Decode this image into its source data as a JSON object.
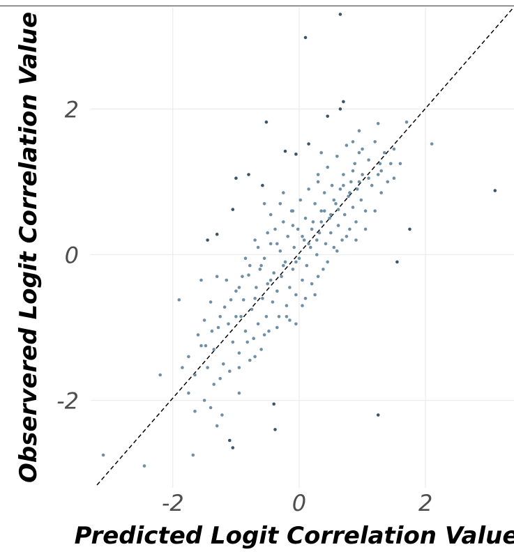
{
  "chart_data": {
    "type": "scatter",
    "title": "",
    "xlabel": "Predicted Logit Correlation Value",
    "ylabel": "Observered Logit Correlation Value",
    "xlim": [
      -3.3,
      3.4
    ],
    "ylim": [
      -3.2,
      3.4
    ],
    "x_ticks": [
      -2,
      0,
      2
    ],
    "y_ticks": [
      -2,
      0,
      2
    ],
    "x_tick_labels": [
      "-2",
      "0",
      "2"
    ],
    "y_tick_labels": [
      "-2",
      "0",
      "2"
    ],
    "grid": true,
    "reference_line": {
      "slope": 1,
      "intercept": 0,
      "style": "dashed",
      "color": "#000000"
    },
    "point_color": "#6f8fa6",
    "highlight_color": "#3b5468",
    "series": [
      {
        "points": [
          [
            -3.1,
            -2.75
          ],
          [
            -2.45,
            -2.9
          ],
          [
            -2.2,
            -1.65
          ],
          [
            -1.9,
            -0.62
          ],
          [
            -1.85,
            -1.55
          ],
          [
            -1.75,
            -1.9
          ],
          [
            -1.68,
            -2.75
          ],
          [
            -1.65,
            -2.15
          ],
          [
            -1.5,
            -2.0
          ],
          [
            -1.4,
            -2.1
          ],
          [
            -1.35,
            -1.78
          ],
          [
            -1.3,
            -2.35
          ],
          [
            -1.22,
            -2.2
          ],
          [
            -1.1,
            -2.55
          ],
          [
            -1.05,
            -2.65
          ],
          [
            -0.95,
            -1.9
          ],
          [
            -0.4,
            -2.05
          ],
          [
            -0.38,
            -2.4
          ],
          [
            1.25,
            -2.2
          ],
          [
            1.55,
            -0.1
          ],
          [
            1.75,
            0.35
          ],
          [
            3.1,
            0.88
          ],
          [
            2.1,
            1.52
          ],
          [
            1.7,
            1.82
          ],
          [
            1.6,
            1.25
          ],
          [
            1.5,
            1.05
          ],
          [
            0.65,
            3.3
          ],
          [
            0.1,
            2.98
          ],
          [
            0.7,
            2.1
          ],
          [
            0.65,
            2.0
          ],
          [
            0.45,
            1.9
          ],
          [
            -0.52,
            1.82
          ],
          [
            0.15,
            1.52
          ],
          [
            -0.22,
            1.42
          ],
          [
            -0.05,
            1.38
          ],
          [
            -1.0,
            1.05
          ],
          [
            -0.8,
            1.1
          ],
          [
            -0.58,
            0.95
          ],
          [
            -0.55,
            0.7
          ],
          [
            -1.05,
            0.62
          ],
          [
            -1.3,
            0.28
          ],
          [
            -1.45,
            0.2
          ],
          [
            0.85,
            1.55
          ],
          [
            1.25,
            1.8
          ],
          [
            0.95,
            1.7
          ],
          [
            1.3,
            1.15
          ],
          [
            0.35,
            1.4
          ],
          [
            0.3,
            1.1
          ],
          [
            -0.25,
            0.85
          ],
          [
            -0.1,
            0.6
          ],
          [
            -1.75,
            -1.4
          ],
          [
            -1.6,
            -1.1
          ],
          [
            -1.5,
            -0.9
          ],
          [
            -1.4,
            -0.65
          ],
          [
            -1.35,
            -1.3
          ],
          [
            -1.28,
            -1.0
          ],
          [
            -1.2,
            -1.5
          ],
          [
            -1.18,
            -0.72
          ],
          [
            -1.12,
            -0.95
          ],
          [
            -1.05,
            -1.2
          ],
          [
            -1.0,
            -0.5
          ],
          [
            -0.95,
            -1.35
          ],
          [
            -0.92,
            -0.85
          ],
          [
            -0.88,
            -0.62
          ],
          [
            -0.85,
            -1.05
          ],
          [
            -0.8,
            -0.28
          ],
          [
            -0.78,
            -1.45
          ],
          [
            -0.75,
            -0.75
          ],
          [
            -0.72,
            -1.15
          ],
          [
            -0.68,
            -0.45
          ],
          [
            -0.65,
            -0.95
          ],
          [
            -0.62,
            -0.2
          ],
          [
            -0.6,
            -1.3
          ],
          [
            -0.58,
            -0.6
          ],
          [
            -0.55,
            -0.05
          ],
          [
            -0.52,
            -0.85
          ],
          [
            -0.5,
            -0.4
          ],
          [
            -0.48,
            -1.05
          ],
          [
            -0.45,
            0.15
          ],
          [
            -0.42,
            -0.65
          ],
          [
            -0.4,
            -0.25
          ],
          [
            -0.38,
            0.35
          ],
          [
            -0.35,
            -0.5
          ],
          [
            -0.32,
            -0.85
          ],
          [
            -0.3,
            0.05
          ],
          [
            -0.28,
            -0.3
          ],
          [
            -0.25,
            0.45
          ],
          [
            -0.22,
            -0.1
          ],
          [
            -0.2,
            -0.7
          ],
          [
            -0.18,
            0.25
          ],
          [
            -0.15,
            -0.45
          ],
          [
            -0.12,
            0.6
          ],
          [
            -0.1,
            -0.2
          ],
          [
            -0.08,
            0.1
          ],
          [
            -0.05,
            -0.55
          ],
          [
            -0.02,
            0.35
          ],
          [
            0.0,
            -0.05
          ],
          [
            0.02,
            0.75
          ],
          [
            0.05,
            -0.35
          ],
          [
            0.08,
            0.2
          ],
          [
            0.1,
            0.5
          ],
          [
            0.12,
            -0.15
          ],
          [
            0.15,
            0.9
          ],
          [
            0.18,
            0.1
          ],
          [
            0.2,
            -0.4
          ],
          [
            0.22,
            0.45
          ],
          [
            0.25,
            0.7
          ],
          [
            0.28,
            0.0
          ],
          [
            0.3,
            1.0
          ],
          [
            0.32,
            0.3
          ],
          [
            0.35,
            0.6
          ],
          [
            0.38,
            -0.2
          ],
          [
            0.4,
            0.85
          ],
          [
            0.42,
            0.15
          ],
          [
            0.45,
            1.2
          ],
          [
            0.48,
            0.5
          ],
          [
            0.5,
            0.3
          ],
          [
            0.52,
            0.95
          ],
          [
            0.55,
            0.1
          ],
          [
            0.58,
            0.7
          ],
          [
            0.6,
            1.35
          ],
          [
            0.62,
            0.4
          ],
          [
            0.65,
            0.9
          ],
          [
            0.68,
            0.2
          ],
          [
            0.7,
            1.1
          ],
          [
            0.72,
            0.55
          ],
          [
            0.75,
            1.5
          ],
          [
            0.78,
            0.8
          ],
          [
            0.8,
            0.35
          ],
          [
            0.82,
            1.0
          ],
          [
            0.85,
            0.65
          ],
          [
            0.88,
            1.25
          ],
          [
            0.9,
            0.45
          ],
          [
            0.92,
            0.9
          ],
          [
            0.95,
            1.4
          ],
          [
            0.98,
            0.75
          ],
          [
            1.0,
            1.1
          ],
          [
            1.05,
            0.6
          ],
          [
            1.1,
            1.3
          ],
          [
            1.15,
            0.95
          ],
          [
            1.2,
            1.55
          ],
          [
            1.25,
            1.1
          ],
          [
            1.3,
            0.85
          ],
          [
            1.35,
            1.4
          ],
          [
            1.4,
            1.0
          ],
          [
            1.45,
            1.25
          ],
          [
            1.5,
            1.45
          ],
          [
            -1.55,
            -0.35
          ],
          [
            -1.3,
            -0.3
          ],
          [
            -1.15,
            -0.35
          ],
          [
            -0.9,
            -0.3
          ],
          [
            -0.7,
            0.2
          ],
          [
            -0.45,
            0.55
          ],
          [
            -0.3,
            0.7
          ],
          [
            0.1,
            -0.6
          ],
          [
            0.25,
            -0.55
          ],
          [
            -0.2,
            -0.85
          ],
          [
            -0.05,
            -0.95
          ],
          [
            -0.6,
            -0.15
          ],
          [
            -0.85,
            -0.05
          ],
          [
            -1.65,
            -1.65
          ],
          [
            -1.45,
            -1.55
          ],
          [
            -1.25,
            -1.7
          ],
          [
            -1.1,
            -1.6
          ],
          [
            -0.95,
            -1.55
          ],
          [
            -0.7,
            -1.4
          ],
          [
            -1.55,
            -1.25
          ],
          [
            -1.0,
            -0.85
          ],
          [
            -0.82,
            -1.2
          ],
          [
            -0.55,
            -1.1
          ],
          [
            -0.35,
            -1.0
          ],
          [
            -0.15,
            -0.9
          ],
          [
            0.05,
            -0.7
          ],
          [
            0.3,
            -0.3
          ],
          [
            0.45,
            -0.1
          ],
          [
            0.6,
            0.05
          ],
          [
            0.75,
            0.25
          ],
          [
            0.9,
            0.2
          ],
          [
            1.05,
            0.35
          ],
          [
            1.2,
            0.6
          ],
          [
            0.4,
            0.6
          ],
          [
            0.55,
            0.75
          ],
          [
            0.7,
            0.95
          ],
          [
            0.85,
            1.15
          ],
          [
            1.0,
            1.45
          ],
          [
            0.2,
            0.35
          ],
          [
            0.05,
            0.25
          ],
          [
            -0.1,
            0.4
          ],
          [
            -0.35,
            0.15
          ],
          [
            -0.5,
            0.3
          ],
          [
            -0.65,
            0.1
          ],
          [
            -0.78,
            -0.15
          ],
          [
            -0.95,
            -0.45
          ],
          [
            -1.08,
            -0.62
          ],
          [
            -1.25,
            -0.85
          ],
          [
            -1.38,
            -1.05
          ],
          [
            -1.48,
            -1.25
          ],
          [
            -0.25,
            -0.15
          ],
          [
            0.15,
            0.15
          ],
          [
            0.35,
            0.45
          ],
          [
            0.62,
            0.62
          ],
          [
            0.8,
            0.85
          ],
          [
            0.95,
            1.0
          ],
          [
            1.1,
            1.05
          ],
          [
            1.28,
            1.25
          ],
          [
            0.5,
            0.55
          ],
          [
            0.28,
            0.2
          ],
          [
            -0.05,
            -0.1
          ],
          [
            -0.45,
            -0.35
          ],
          [
            -0.7,
            -0.6
          ]
        ]
      }
    ]
  }
}
